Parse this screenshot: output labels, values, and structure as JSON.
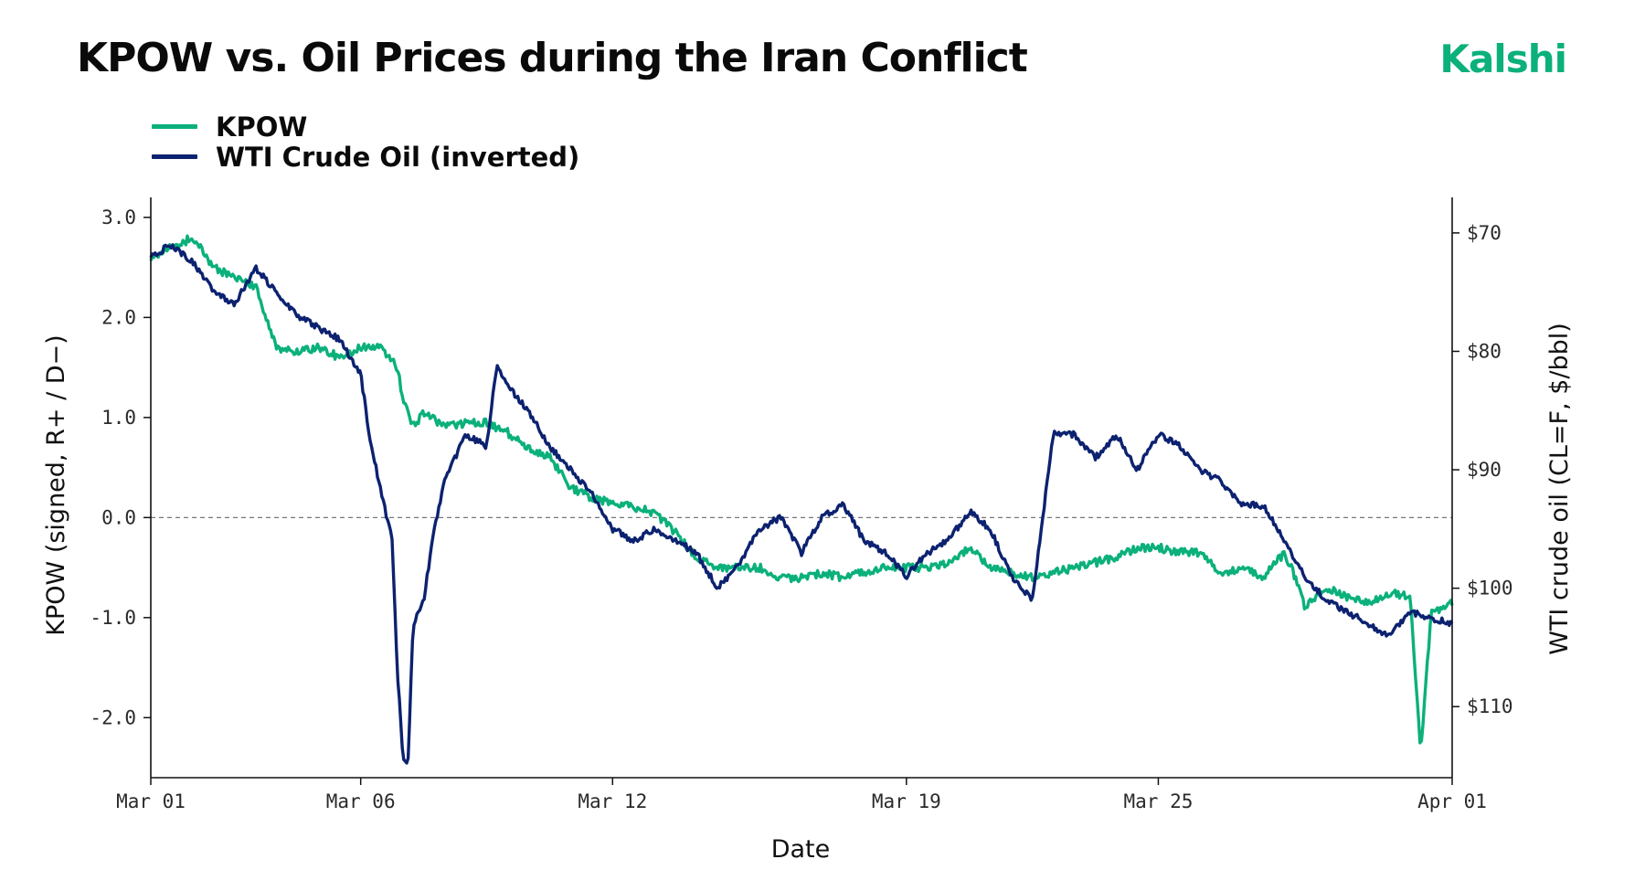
{
  "header": {
    "title": "KPOW vs. Oil Prices during the Iran Conflict",
    "brand": "Kalshi",
    "brand_color": "#0bb07b"
  },
  "chart_data": {
    "type": "line",
    "title": "KPOW vs. Oil Prices during the Iran Conflict",
    "xlabel": "Date",
    "ylabel": "KPOW (signed, R+ / D−)",
    "y2label": "WTI crude oil (CL=F, $/bbl)",
    "x_range": [
      "2025-03-01",
      "2025-04-01"
    ],
    "x_ticks": [
      {
        "date": "2025-03-01",
        "label": "Mar 01"
      },
      {
        "date": "2025-03-06",
        "label": "Mar 06"
      },
      {
        "date": "2025-03-12",
        "label": "Mar 12"
      },
      {
        "date": "2025-03-19",
        "label": "Mar 19"
      },
      {
        "date": "2025-03-25",
        "label": "Mar 25"
      },
      {
        "date": "2025-04-01",
        "label": "Apr 01"
      }
    ],
    "ylim": [
      -2.6,
      3.2
    ],
    "y_ticks": [
      {
        "value": 3.0,
        "label": "3.0"
      },
      {
        "value": 2.0,
        "label": "2.0"
      },
      {
        "value": 1.0,
        "label": "1.0"
      },
      {
        "value": 0.0,
        "label": "0.0"
      },
      {
        "value": -1.0,
        "label": "-1.0"
      },
      {
        "value": -2.0,
        "label": "-2.0"
      }
    ],
    "y2lim_inverted": [
      116,
      67
    ],
    "y2_ticks": [
      {
        "value": 70,
        "label": "$70"
      },
      {
        "value": 80,
        "label": "$80"
      },
      {
        "value": 90,
        "label": "$90"
      },
      {
        "value": 100,
        "label": "$100"
      },
      {
        "value": 110,
        "label": "$110"
      }
    ],
    "reference_line": {
      "axis": "left",
      "value": 0.0,
      "style": "dashed"
    },
    "grid": false,
    "legend_position": "top-left",
    "series": [
      {
        "name": "KPOW",
        "axis": "left",
        "color": "#0bb07b",
        "x": [
          "2025-03-01",
          "2025-03-01T12:00",
          "2025-03-02",
          "2025-03-02T12:00",
          "2025-03-03",
          "2025-03-03T12:00",
          "2025-03-04",
          "2025-03-04T12:00",
          "2025-03-05",
          "2025-03-05T12:00",
          "2025-03-06",
          "2025-03-06T12:00",
          "2025-03-06T21:00",
          "2025-03-07",
          "2025-03-07T06:00",
          "2025-03-07T12:00",
          "2025-03-08",
          "2025-03-08T12:00",
          "2025-03-09",
          "2025-03-09T12:00",
          "2025-03-10",
          "2025-03-10T12:00",
          "2025-03-11",
          "2025-03-11T12:00",
          "2025-03-12",
          "2025-03-12T12:00",
          "2025-03-13",
          "2025-03-13T12:00",
          "2025-03-14",
          "2025-03-14T12:00",
          "2025-03-15",
          "2025-03-15T12:00",
          "2025-03-16",
          "2025-03-16T12:00",
          "2025-03-17",
          "2025-03-17T12:00",
          "2025-03-18",
          "2025-03-18T12:00",
          "2025-03-19",
          "2025-03-19T12:00",
          "2025-03-20",
          "2025-03-20T12:00",
          "2025-03-21",
          "2025-03-21T12:00",
          "2025-03-22",
          "2025-03-22T12:00",
          "2025-03-23",
          "2025-03-23T12:00",
          "2025-03-24",
          "2025-03-24T12:00",
          "2025-03-25",
          "2025-03-25T12:00",
          "2025-03-26",
          "2025-03-26T12:00",
          "2025-03-27",
          "2025-03-27T12:00",
          "2025-03-28",
          "2025-03-28T04:00",
          "2025-03-28T12:00",
          "2025-03-29",
          "2025-03-29T12:00",
          "2025-03-30",
          "2025-03-30T12:00",
          "2025-03-31",
          "2025-03-31T06:00",
          "2025-03-31T12:00",
          "2025-04-01"
        ],
        "values": [
          2.6,
          2.7,
          2.8,
          2.5,
          2.4,
          2.3,
          1.7,
          1.65,
          1.7,
          1.6,
          1.7,
          1.7,
          1.5,
          1.2,
          0.9,
          1.05,
          0.9,
          0.95,
          0.95,
          0.85,
          0.7,
          0.6,
          0.3,
          0.2,
          0.15,
          0.1,
          0.05,
          -0.15,
          -0.4,
          -0.5,
          -0.5,
          -0.5,
          -0.6,
          -0.6,
          -0.55,
          -0.6,
          -0.55,
          -0.5,
          -0.5,
          -0.5,
          -0.45,
          -0.3,
          -0.5,
          -0.55,
          -0.6,
          -0.55,
          -0.5,
          -0.45,
          -0.4,
          -0.3,
          -0.3,
          -0.35,
          -0.35,
          -0.55,
          -0.5,
          -0.6,
          -0.35,
          -0.5,
          -0.9,
          -0.7,
          -0.8,
          -0.85,
          -0.75,
          -0.8,
          -2.35,
          -0.95,
          -0.85
        ]
      },
      {
        "name": "WTI Crude Oil (inverted)",
        "axis": "right",
        "color": "#0c2270",
        "x": [
          "2025-03-01",
          "2025-03-01T12:00",
          "2025-03-02",
          "2025-03-02T12:00",
          "2025-03-03",
          "2025-03-03T12:00",
          "2025-03-04",
          "2025-03-04T12:00",
          "2025-03-05",
          "2025-03-05T12:00",
          "2025-03-06",
          "2025-03-06T06:00",
          "2025-03-06T12:00",
          "2025-03-06T18:00",
          "2025-03-06T21:00",
          "2025-03-07",
          "2025-03-07T03:00",
          "2025-03-07T06:00",
          "2025-03-07T12:00",
          "2025-03-07T18:00",
          "2025-03-08",
          "2025-03-08T12:00",
          "2025-03-09",
          "2025-03-09T06:00",
          "2025-03-09T12:00",
          "2025-03-10",
          "2025-03-10T12:00",
          "2025-03-11",
          "2025-03-11T12:00",
          "2025-03-12",
          "2025-03-12T12:00",
          "2025-03-13",
          "2025-03-13T12:00",
          "2025-03-14",
          "2025-03-14T12:00",
          "2025-03-15",
          "2025-03-15T12:00",
          "2025-03-16",
          "2025-03-16T12:00",
          "2025-03-17",
          "2025-03-17T12:00",
          "2025-03-18",
          "2025-03-18T12:00",
          "2025-03-19",
          "2025-03-19T12:00",
          "2025-03-20",
          "2025-03-20T12:00",
          "2025-03-21",
          "2025-03-21T12:00",
          "2025-03-22",
          "2025-03-22T12:00",
          "2025-03-23",
          "2025-03-23T12:00",
          "2025-03-24",
          "2025-03-24T12:00",
          "2025-03-25",
          "2025-03-25T12:00",
          "2025-03-26",
          "2025-03-26T12:00",
          "2025-03-27",
          "2025-03-27T12:00",
          "2025-03-28",
          "2025-03-28T12:00",
          "2025-03-29",
          "2025-03-29T12:00",
          "2025-03-30",
          "2025-03-30T12:00",
          "2025-03-31",
          "2025-04-01"
        ],
        "values": [
          72,
          71,
          72.5,
          75,
          76,
          73,
          75,
          77,
          78,
          79,
          82,
          88,
          92,
          96,
          107,
          114,
          115,
          103,
          101,
          95,
          91,
          87,
          88,
          81,
          83,
          85,
          88,
          90,
          92,
          95,
          96,
          95,
          96,
          97,
          100,
          98,
          95,
          94,
          97,
          94,
          93,
          96,
          97,
          99,
          97,
          96,
          93.5,
          95,
          99,
          101,
          87,
          87,
          89,
          87,
          90,
          87,
          88,
          90,
          91,
          93,
          93,
          96,
          99,
          101,
          102,
          103,
          104,
          102,
          103
        ]
      }
    ]
  }
}
